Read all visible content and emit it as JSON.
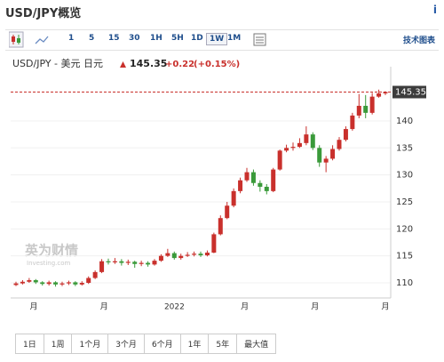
{
  "header": {
    "title": "USD/JPY概览",
    "info": "i"
  },
  "toolbar": {
    "intervals": [
      "1",
      "5",
      "15",
      "30",
      "1H",
      "5H",
      "1D",
      "1W",
      "1M"
    ],
    "selected": "1W",
    "advanced": "技术图表"
  },
  "quote": {
    "name": "USD/JPY - 美元 日元",
    "price": 145.35,
    "change": "+0.22",
    "change_pct": "(+0.15%)"
  },
  "watermark": {
    "brand": "英为财情",
    "site": "Investing.com"
  },
  "chart_data": {
    "type": "candlestick",
    "categories": [
      null,
      null,
      null,
      null,
      null,
      null,
      null,
      null,
      null,
      null,
      null,
      null,
      null,
      null,
      null,
      null,
      null,
      null,
      null,
      null,
      null,
      null,
      null,
      null,
      null,
      null,
      null,
      null,
      null,
      null,
      null,
      null,
      null,
      null,
      null,
      null,
      null,
      null,
      null,
      null,
      null,
      null,
      null,
      null,
      null,
      null,
      null,
      null,
      null,
      null,
      null,
      null,
      null,
      null,
      null,
      null,
      null
    ],
    "series": [
      {
        "name": "USD/JPY",
        "up_color": "#c9302c",
        "down_color": "#3a9a3a",
        "open": [
          109.6,
          109.9,
          110.2,
          110.5,
          110.1,
          109.8,
          110.1,
          109.7,
          109.9,
          110.1,
          109.7,
          110.0,
          110.9,
          112.0,
          114.0,
          113.8,
          114.0,
          113.7,
          113.9,
          113.5,
          113.7,
          113.4,
          114.1,
          115.0,
          115.5,
          114.6,
          115.0,
          115.2,
          115.4,
          115.1,
          115.6,
          119.0,
          122.0,
          124.3,
          127.0,
          129.0,
          130.5,
          128.5,
          127.8,
          127.0,
          131.0,
          134.5,
          135.0,
          135.2,
          135.9,
          137.5,
          135.0,
          132.3,
          133.0,
          134.8,
          136.5,
          138.5,
          141.0,
          142.8,
          141.5,
          144.5,
          145.1
        ],
        "high": [
          110.2,
          110.5,
          110.9,
          110.7,
          110.3,
          110.4,
          110.3,
          110.2,
          110.4,
          110.3,
          110.3,
          111.2,
          112.3,
          114.4,
          114.5,
          114.6,
          114.4,
          114.3,
          114.1,
          114.1,
          114.0,
          114.4,
          115.3,
          116.3,
          115.8,
          115.4,
          115.7,
          115.8,
          115.8,
          116.0,
          119.3,
          122.5,
          125.0,
          127.5,
          129.5,
          131.3,
          131.0,
          129.0,
          128.3,
          131.3,
          134.7,
          135.6,
          136.0,
          136.8,
          139.0,
          137.9,
          135.5,
          133.5,
          135.5,
          137.0,
          139.0,
          141.5,
          145.0,
          144.8,
          145.2,
          145.8,
          145.5
        ],
        "low": [
          109.4,
          109.7,
          110.0,
          109.8,
          109.5,
          109.5,
          109.3,
          109.4,
          109.6,
          109.4,
          109.5,
          109.8,
          110.7,
          111.8,
          113.4,
          113.5,
          113.2,
          113.3,
          112.8,
          113.1,
          113.0,
          113.2,
          113.9,
          114.8,
          114.3,
          114.3,
          114.8,
          114.9,
          114.8,
          114.9,
          115.5,
          118.8,
          121.8,
          124.0,
          126.6,
          128.7,
          128.0,
          126.9,
          126.4,
          126.8,
          130.8,
          134.2,
          134.5,
          135.0,
          135.5,
          134.6,
          131.5,
          130.5,
          132.7,
          134.5,
          136.2,
          138.2,
          140.5,
          140.5,
          141.2,
          144.3,
          144.8
        ],
        "close": [
          109.9,
          110.2,
          110.5,
          110.1,
          109.8,
          110.1,
          109.7,
          109.9,
          110.1,
          109.7,
          110.0,
          110.9,
          112.0,
          114.0,
          113.8,
          114.0,
          113.7,
          113.9,
          113.5,
          113.7,
          113.4,
          114.1,
          115.0,
          115.5,
          114.6,
          115.0,
          115.2,
          115.4,
          115.1,
          115.6,
          119.0,
          122.0,
          124.3,
          127.0,
          129.0,
          130.5,
          128.5,
          127.8,
          127.0,
          131.0,
          134.5,
          135.0,
          135.2,
          135.9,
          137.5,
          135.0,
          132.3,
          133.0,
          134.8,
          136.5,
          138.5,
          141.0,
          142.8,
          141.5,
          144.5,
          145.1,
          145.35
        ]
      }
    ],
    "xtick_labels": [
      "月",
      "月",
      "2022",
      "月",
      "月",
      "月"
    ],
    "last_price": 145.35,
    "ylim": [
      107.2,
      148.4
    ],
    "yticks": [
      110,
      115,
      120,
      125,
      130,
      135,
      140
    ],
    "grid": true
  },
  "ranges": [
    "1日",
    "1周",
    "1个月",
    "3个月",
    "6个月",
    "1年",
    "5年",
    "最大值"
  ]
}
